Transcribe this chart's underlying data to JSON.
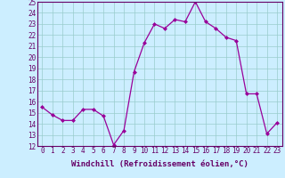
{
  "x": [
    0,
    1,
    2,
    3,
    4,
    5,
    6,
    7,
    8,
    9,
    10,
    11,
    12,
    13,
    14,
    15,
    16,
    17,
    18,
    19,
    20,
    21,
    22,
    23
  ],
  "y": [
    15.5,
    14.8,
    14.3,
    14.3,
    15.3,
    15.3,
    14.7,
    12.1,
    13.4,
    18.7,
    21.3,
    23.0,
    22.6,
    23.4,
    23.2,
    25.0,
    23.2,
    22.6,
    21.8,
    21.5,
    16.7,
    16.7,
    13.1,
    14.1
  ],
  "line_color": "#990099",
  "marker": "D",
  "marker_size": 2,
  "bg_color": "#cceeff",
  "grid_color": "#99cccc",
  "xlabel": "Windchill (Refroidissement éolien,°C)",
  "xlabel_fontsize": 6.5,
  "ylim": [
    12,
    25
  ],
  "xlim": [
    -0.5,
    23.5
  ],
  "ytick_labels": [
    "12",
    "13",
    "14",
    "15",
    "16",
    "17",
    "18",
    "19",
    "20",
    "21",
    "22",
    "23",
    "24",
    "25"
  ],
  "ytick_values": [
    12,
    13,
    14,
    15,
    16,
    17,
    18,
    19,
    20,
    21,
    22,
    23,
    24,
    25
  ],
  "xtick_values": [
    0,
    1,
    2,
    3,
    4,
    5,
    6,
    7,
    8,
    9,
    10,
    11,
    12,
    13,
    14,
    15,
    16,
    17,
    18,
    19,
    20,
    21,
    22,
    23
  ],
  "tick_fontsize": 5.5,
  "label_color": "#660066",
  "spine_color": "#660066"
}
